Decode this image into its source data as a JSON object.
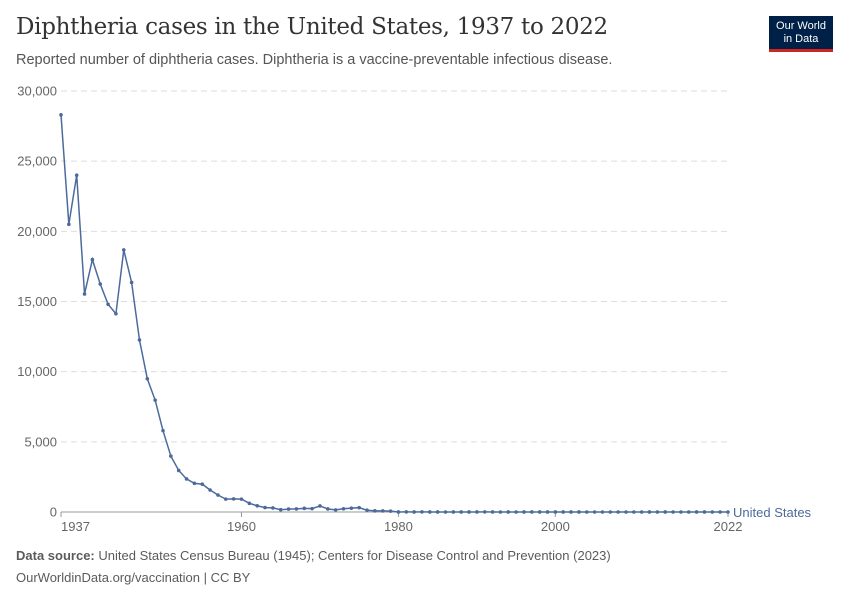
{
  "title": "Diphtheria cases in the United States, 1937 to 2022",
  "subtitle": "Reported number of diphtheria cases. Diphtheria is a vaccine-preventable infectious disease.",
  "logo": {
    "line1": "Our World",
    "line2": "in Data"
  },
  "footer": {
    "source_label": "Data source:",
    "source": "United States Census Bureau (1945); Centers for Disease Control and Prevention (2023)",
    "url": "OurWorldinData.org/vaccination | CC BY"
  },
  "colors": {
    "series": "#4c6a9c",
    "logo_bg": "#002147",
    "logo_accent": "#ce261e"
  },
  "chart_data": {
    "type": "line",
    "xlim": [
      1937,
      2022
    ],
    "ylim": [
      0,
      30000
    ],
    "x_ticks": [
      "1937",
      "1960",
      "1980",
      "2000",
      "2022"
    ],
    "y_ticks": [
      "0",
      "5,000",
      "10,000",
      "15,000",
      "20,000",
      "25,000",
      "30,000"
    ],
    "grid": "horizontal dashed",
    "series": [
      {
        "name": "United States",
        "start_year": 1937,
        "values": [
          28300,
          20500,
          24000,
          15536,
          17985,
          16245,
          14803,
          14123,
          18675,
          16355,
          12262,
          9493,
          7969,
          5796,
          3983,
          2960,
          2355,
          2041,
          1984,
          1568,
          1211,
          918,
          934,
          918,
          617,
          444,
          314,
          293,
          164,
          209,
          219,
          260,
          241,
          435,
          215,
          152,
          228,
          272,
          307,
          128,
          84,
          76,
          59,
          3,
          5,
          2,
          5,
          1,
          3,
          0,
          3,
          2,
          3,
          4,
          5,
          4,
          0,
          2,
          0,
          2,
          4,
          1,
          1,
          1,
          2,
          1,
          1,
          0,
          0,
          0,
          0,
          0,
          0,
          0,
          0,
          1,
          0,
          1,
          0,
          0,
          0,
          1,
          2,
          0,
          0,
          0
        ]
      }
    ]
  }
}
